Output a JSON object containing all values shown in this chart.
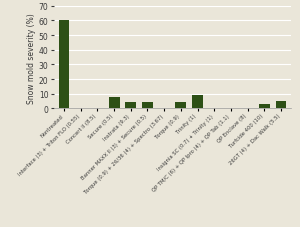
{
  "categories": [
    "Nontreated",
    "Interface (3) + Triton FLO (0.55)",
    "Concert II (8.5)",
    "Secure (0.5)",
    "Instrata (9.3)",
    "Banner MAXX II (3) + Secure (0.5)",
    "Torque (0.9) + 26/36 (4) + Spectro (3.67)",
    "Torque (0.9)",
    "Trinity (1)",
    "Insignia SC (0.7) + Trinity (1)",
    "QP TM/C (6) + QP Ipro (4) + QP Tab (1.1)",
    "QP Enclave (8)",
    "Turfcide 400 (10)",
    "26GT (4) + Dac Walk (5.5)"
  ],
  "values": [
    60,
    0.3,
    0.5,
    8,
    4.5,
    4.5,
    0.5,
    4.5,
    9.5,
    0.3,
    0.3,
    0.3,
    3,
    5
  ],
  "bar_color": "#2d5016",
  "ylabel": "Snow mold severity (%)",
  "ylim": [
    0,
    70
  ],
  "yticks": [
    0,
    10,
    20,
    30,
    40,
    50,
    60,
    70
  ],
  "background_color": "#eae6d9",
  "grid_color": "#ffffff",
  "label_fontsize": 3.8,
  "ylabel_fontsize": 5.5,
  "ytick_fontsize": 5.5
}
